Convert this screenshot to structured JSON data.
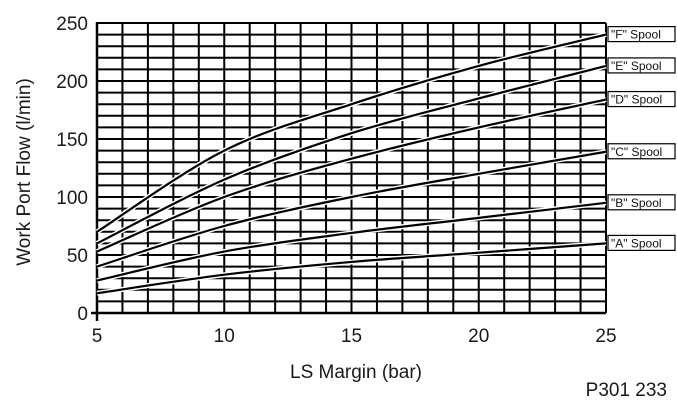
{
  "chart_data": {
    "type": "line",
    "title": "",
    "xlabel": "LS Margin (bar)",
    "ylabel": "Work Port Flow (l/min)",
    "xlim": [
      5,
      25
    ],
    "ylim": [
      0,
      250
    ],
    "x_ticks": [
      "5",
      "10",
      "15",
      "20",
      "25"
    ],
    "y_ticks": [
      "0",
      "50",
      "100",
      "150",
      "200",
      "250"
    ],
    "grid": true,
    "series": [
      {
        "name": "\"A\" Spool",
        "x": [
          5,
          10,
          15,
          20,
          25
        ],
        "y": [
          17,
          33,
          44,
          52,
          60
        ]
      },
      {
        "name": "\"B\" Spool",
        "x": [
          5,
          10,
          15,
          20,
          25
        ],
        "y": [
          28,
          53,
          69,
          82,
          95
        ]
      },
      {
        "name": "\"C\" Spool",
        "x": [
          5,
          10,
          15,
          20,
          25
        ],
        "y": [
          40,
          75,
          100,
          120,
          139
        ]
      },
      {
        "name": "\"D\" Spool",
        "x": [
          5,
          10,
          15,
          20,
          25
        ],
        "y": [
          53,
          100,
          133,
          160,
          184
        ]
      },
      {
        "name": "\"E\" Spool",
        "x": [
          5,
          10,
          15,
          20,
          25
        ],
        "y": [
          60,
          115,
          155,
          185,
          213
        ]
      },
      {
        "name": "\"F\" Spool",
        "x": [
          5,
          10,
          15,
          20,
          25
        ],
        "y": [
          70,
          140,
          180,
          213,
          240
        ]
      }
    ]
  },
  "figure_code": "P301 233"
}
